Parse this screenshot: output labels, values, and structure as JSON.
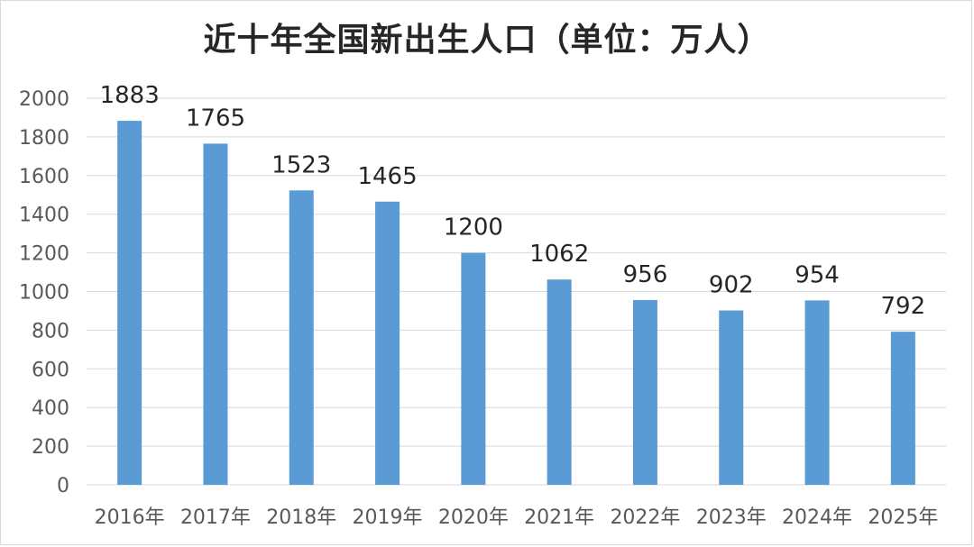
{
  "chart_data": {
    "type": "bar",
    "title": "近十年全国新出生人口（单位：万人）",
    "categories": [
      "2016年",
      "2017年",
      "2018年",
      "2019年",
      "2020年",
      "2021年",
      "2022年",
      "2023年",
      "2024年",
      "2025年"
    ],
    "values": [
      1883,
      1765,
      1523,
      1465,
      1200,
      1062,
      956,
      902,
      954,
      792
    ],
    "yticks": [
      "0",
      "200",
      "400",
      "600",
      "800",
      "1000",
      "1200",
      "1400",
      "1600",
      "1800",
      "2000"
    ],
    "ylim": [
      0,
      2000
    ],
    "grid": true,
    "bar_color": "#5b9bd5"
  }
}
